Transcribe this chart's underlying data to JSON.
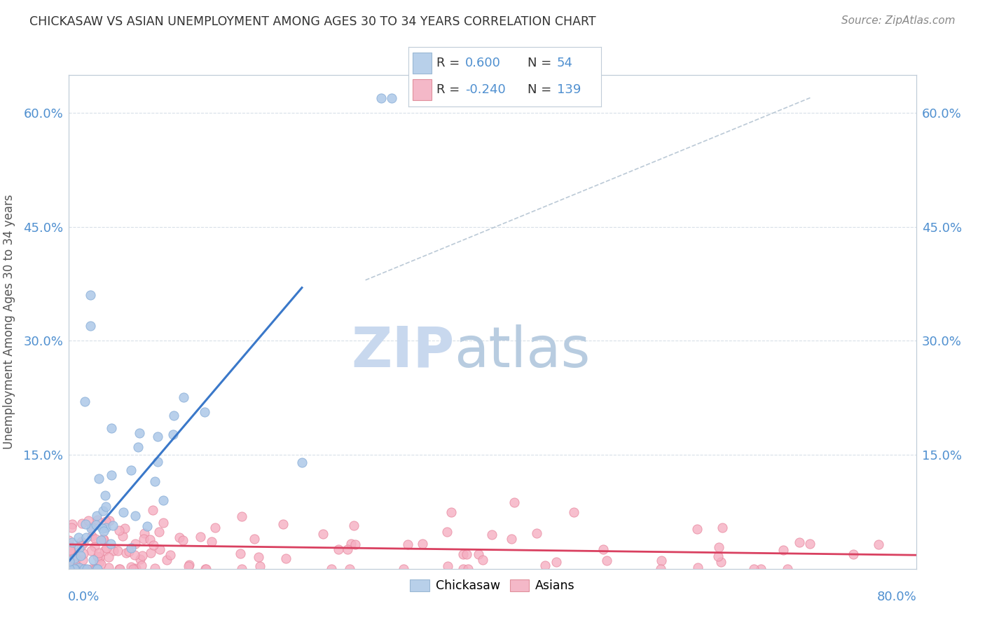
{
  "title": "CHICKASAW VS ASIAN UNEMPLOYMENT AMONG AGES 30 TO 34 YEARS CORRELATION CHART",
  "source": "Source: ZipAtlas.com",
  "ylabel": "Unemployment Among Ages 30 to 34 years",
  "xlim": [
    0.0,
    0.8
  ],
  "ylim": [
    0.0,
    0.65
  ],
  "yticks": [
    0.15,
    0.3,
    0.45,
    0.6
  ],
  "ytick_labels": [
    "15.0%",
    "30.0%",
    "45.0%",
    "60.0%"
  ],
  "right_ytick_labels": [
    "15.0%",
    "30.0%",
    "45.0%",
    "60.0%"
  ],
  "chickasaw_R": 0.6,
  "chickasaw_N": 54,
  "asian_R": -0.24,
  "asian_N": 139,
  "chickasaw_color": "#adc8e8",
  "asian_color": "#f5afc2",
  "chickasaw_edge": "#8aafd8",
  "asian_edge": "#e88aa0",
  "trendline_chickasaw": "#3a78c9",
  "trendline_asian": "#d94060",
  "ref_line_color": "#aabccc",
  "watermark_zip_color": "#c8d8ee",
  "watermark_atlas_color": "#b8cce0",
  "background_color": "#ffffff",
  "legend_box_chickasaw": "#b8d0ea",
  "legend_box_asian": "#f4b8c8",
  "grid_color": "#d8e0e8",
  "tick_color": "#5090d0",
  "spine_color": "#c0ccd8"
}
